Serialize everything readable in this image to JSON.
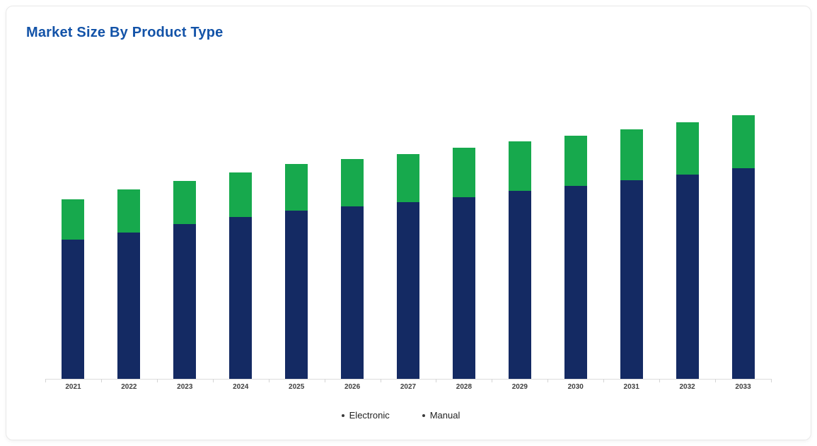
{
  "card": {
    "title": "Market Size By Product Type"
  },
  "colors": {
    "title_text": "#1353a8",
    "electronic": "#142a63",
    "manual": "#17a94d",
    "axis_line": "#dcdcdc",
    "x_label_text": "#3f3f3f",
    "legend_text": "#222222",
    "legend_marker": "#3a3a3a",
    "card_border": "#e9e9e9",
    "card_background": "#ffffff"
  },
  "legend": {
    "items": [
      {
        "label": "Electronic",
        "marker": "dot-icon"
      },
      {
        "label": "Manual",
        "marker": "dot-icon"
      }
    ]
  },
  "chart_data": {
    "type": "bar",
    "stacked": true,
    "title": "Market Size By Product Type",
    "xlabel": "",
    "ylabel": "",
    "grid": false,
    "legend_position": "bottom",
    "value_units": "relative height units (no numeric y-axis shown in image)",
    "ylim": [
      0,
      400
    ],
    "categories": [
      "2021",
      "2022",
      "2023",
      "2024",
      "2025",
      "2026",
      "2027",
      "2028",
      "2029",
      "2030",
      "2031",
      "2032",
      "2033"
    ],
    "series": [
      {
        "name": "Electronic",
        "color": "#142a63",
        "values": [
          197,
          207,
          219,
          229,
          238,
          244,
          250,
          257,
          266,
          273,
          281,
          289,
          298
        ]
      },
      {
        "name": "Manual",
        "color": "#17a94d",
        "values": [
          57,
          61,
          61,
          63,
          66,
          67,
          68,
          70,
          70,
          71,
          72,
          74,
          75
        ]
      }
    ]
  }
}
